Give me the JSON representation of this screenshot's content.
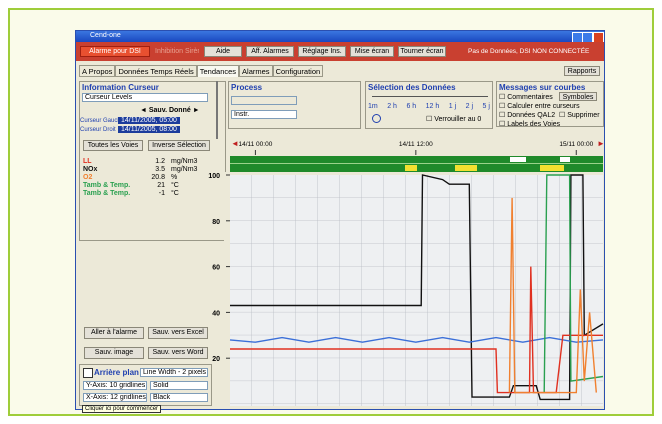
{
  "window": {
    "title": "Cend-one"
  },
  "toolbar": {
    "buttons": [
      "Alarme pour DSI",
      "Inhibition Sirènes",
      "Aide",
      "Aff. Alarmes",
      "Réglage Ins.",
      "Mise écran",
      "Tourner écran"
    ],
    "status": "Pas de Données, DSI NON CONNECTÉE"
  },
  "tabs": {
    "items": [
      "A Propos",
      "Données Temps Réels",
      "Tendances",
      "Alarmes",
      "Configuration"
    ],
    "right": "Rapports"
  },
  "cursor_panel": {
    "title": "Information Curseur",
    "select": "Curseur Levels",
    "save": "Sauv. Donné",
    "left_label": "Curseur Gauche",
    "left_value": "14/11/2005, 05:00",
    "right_label": "Curseur Droit",
    "right_value": "14/11/2005, 08:00",
    "all": "Toutes les Voies",
    "invert": "Inverse Sélection",
    "rows": [
      [
        "LL",
        1.2,
        "mg/Nm3"
      ],
      [
        "NOx",
        3.5,
        "mg/Nm3"
      ],
      [
        "O2",
        20.8,
        "%"
      ],
      [
        "Tamb & Temp.",
        21,
        "°C"
      ],
      [
        "Tamb & Temp.",
        -1,
        "°C"
      ]
    ]
  },
  "actions": [
    "Aller à l'alarme",
    "Sauv. vers Excel",
    "Sauv. image",
    "Sauv. vers Word"
  ],
  "display": {
    "background": "Arrière plan",
    "line_width": "Line Width - 2 pixels",
    "y_grid": "Y-Axis: 10 gridlines",
    "style": "Solid",
    "x_grid": "X-Axis: 12 gridlines",
    "color": "Black",
    "tooltip": "Cliquer ici pour commencer"
  },
  "process": {
    "title": "Process",
    "select": "Instr."
  },
  "selection": {
    "title": "Sélection des Données",
    "ranges": [
      "1m",
      "2 h",
      "6 h",
      "12 h",
      "1 j",
      "2 j",
      "5 j"
    ],
    "lock": "Verrouiller au 0"
  },
  "messages": {
    "title": "Messages sur courbes",
    "items": [
      "Commentaires",
      "Calculer entre curseurs",
      "Données QAL2",
      "Labels des Voies"
    ],
    "buttons": [
      "Symboles",
      "Supprimer"
    ]
  },
  "chart_data": {
    "type": "line",
    "xlim": [
      -1.9,
      26
    ],
    "ylim": [
      0,
      100
    ],
    "xticks": [
      {
        "value": 0,
        "label": "14/11 00:00"
      },
      {
        "value": 12,
        "label": "14/11 12:00"
      },
      {
        "value": 24,
        "label": "15/11 00:00"
      }
    ],
    "yticks": [
      20,
      40,
      60,
      80,
      100
    ],
    "series": [
      {
        "color": "#111111",
        "x": [
          -1.9,
          12.4,
          12.5,
          14,
          14.5,
          16,
          16.2,
          19,
          19.3,
          21,
          21.3,
          23.5,
          23.6,
          24.5,
          24.6,
          26
        ],
        "values": [
          43,
          43,
          100,
          98,
          96,
          96,
          3,
          3,
          8,
          8,
          2,
          2,
          100,
          100,
          30,
          35
        ]
      },
      {
        "color": "#3b6fd8",
        "x": [
          -1.9,
          0,
          2,
          4,
          6,
          8,
          10,
          12,
          14,
          16,
          18,
          20,
          22,
          24,
          26
        ],
        "values": [
          28,
          27,
          29,
          27,
          29,
          27,
          29,
          27,
          29,
          27,
          29,
          27,
          29,
          27,
          28
        ]
      },
      {
        "color": "#e03020",
        "x": [
          -1.9,
          18,
          18.1,
          20.5,
          20.6,
          20.8,
          22.5,
          23,
          26
        ],
        "values": [
          24,
          24,
          5,
          5,
          60,
          5,
          5,
          30,
          30
        ]
      },
      {
        "color": "#2aa050",
        "x": [
          21.6,
          21.8,
          23.5,
          23.6,
          26
        ],
        "values": [
          5,
          100,
          100,
          10,
          12
        ]
      },
      {
        "color": "#f08030",
        "x": [
          19,
          19.2,
          19.4,
          24,
          24.3,
          24.6,
          25,
          25.5
        ],
        "values": [
          5,
          90,
          5,
          5,
          50,
          10,
          40,
          5
        ]
      }
    ]
  }
}
